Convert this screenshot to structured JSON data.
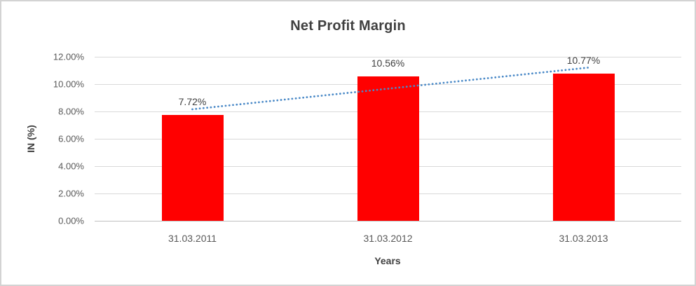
{
  "window": {
    "background": "#ffffff",
    "border_color": "#d3d3d3"
  },
  "chart_data": {
    "type": "bar",
    "title": "Net Profit Margin",
    "xlabel": "Years",
    "ylabel": "IN (%)",
    "categories": [
      "31.03.2011",
      "31.03.2012",
      "31.03.2013"
    ],
    "values": [
      7.72,
      10.56,
      10.77
    ],
    "data_labels": [
      "7.72%",
      "10.56%",
      "10.77%"
    ],
    "ylim": [
      0,
      12
    ],
    "ytick_step": 2,
    "ytick_labels": [
      "0.00%",
      "2.00%",
      "4.00%",
      "6.00%",
      "8.00%",
      "10.00%",
      "12.00%"
    ],
    "grid": true,
    "legend": "none",
    "bar_color": "#ff0000",
    "gridline_color": "#d9d9d9",
    "axis_line_color": "#bfbfbf",
    "title_color": "#404040",
    "tick_label_color": "#595959",
    "trendline": {
      "type": "linear",
      "style": "dotted",
      "color": "#4a89c7",
      "start_value": 8.16,
      "end_value": 11.21
    }
  }
}
